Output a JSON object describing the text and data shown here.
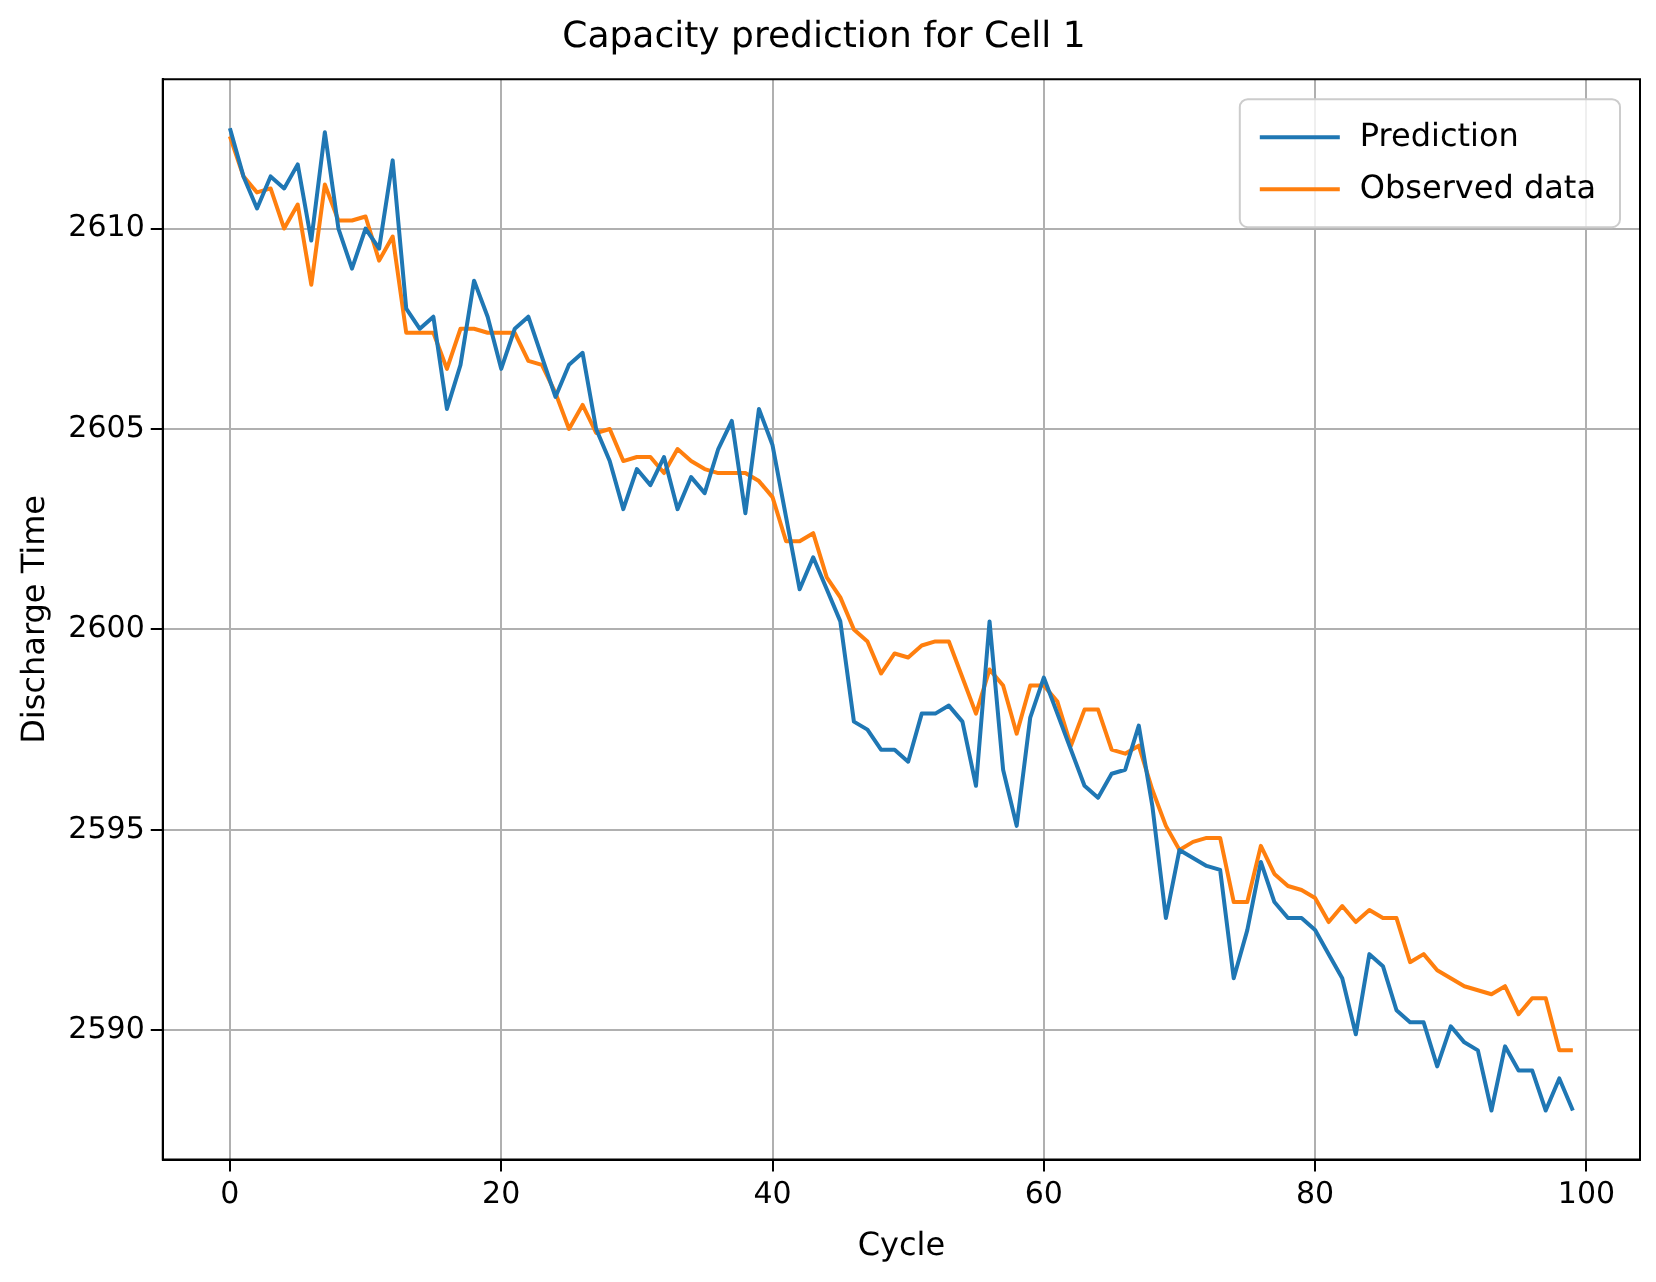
{
  "chart_data": {
    "type": "line",
    "title": "Capacity prediction for Cell 1",
    "xlabel": "Cycle",
    "ylabel": "Discharge Time",
    "x": [
      0,
      1,
      2,
      3,
      4,
      5,
      6,
      7,
      8,
      9,
      10,
      11,
      12,
      13,
      14,
      15,
      16,
      17,
      18,
      19,
      20,
      21,
      22,
      23,
      24,
      25,
      26,
      27,
      28,
      29,
      30,
      31,
      32,
      33,
      34,
      35,
      36,
      37,
      38,
      39,
      40,
      41,
      42,
      43,
      44,
      45,
      46,
      47,
      48,
      49,
      50,
      51,
      52,
      53,
      54,
      55,
      56,
      57,
      58,
      59,
      60,
      61,
      62,
      63,
      64,
      65,
      66,
      67,
      68,
      69,
      70,
      71,
      72,
      73,
      74,
      75,
      76,
      77,
      78,
      79,
      80,
      81,
      82,
      83,
      84,
      85,
      86,
      87,
      88,
      89,
      90,
      91,
      92,
      93,
      94,
      95,
      96,
      97,
      98,
      99
    ],
    "series": [
      {
        "name": "Prediction",
        "color": "#1f77b4",
        "values": [
          2612.5,
          2611.3,
          2610.5,
          2611.3,
          2611.0,
          2611.6,
          2609.7,
          2612.4,
          2610.0,
          2609.0,
          2610.0,
          2609.5,
          2611.7,
          2608.0,
          2607.5,
          2607.8,
          2605.5,
          2606.6,
          2608.7,
          2607.8,
          2606.5,
          2607.5,
          2607.8,
          2606.8,
          2605.8,
          2606.6,
          2606.9,
          2605.0,
          2604.2,
          2603.0,
          2604.0,
          2603.6,
          2604.3,
          2603.0,
          2603.8,
          2603.4,
          2604.5,
          2605.2,
          2602.9,
          2605.5,
          2604.6,
          2602.8,
          2601.0,
          2601.8,
          2601.0,
          2600.2,
          2597.7,
          2597.5,
          2597.0,
          2597.0,
          2596.7,
          2597.9,
          2597.9,
          2598.1,
          2597.7,
          2596.1,
          2600.2,
          2596.5,
          2595.1,
          2597.8,
          2598.8,
          2597.9,
          2597.0,
          2596.1,
          2595.8,
          2596.4,
          2596.5,
          2597.6,
          2595.6,
          2592.8,
          2594.5,
          2594.3,
          2594.1,
          2594.0,
          2591.3,
          2592.5,
          2594.2,
          2593.2,
          2592.8,
          2592.8,
          2592.5,
          2591.9,
          2591.3,
          2589.9,
          2591.9,
          2591.6,
          2590.5,
          2590.2,
          2590.2,
          2589.1,
          2590.1,
          2589.7,
          2589.5,
          2588.0,
          2589.6,
          2589.0,
          2589.0,
          2588.0,
          2588.8,
          2588.0
        ]
      },
      {
        "name": "Observed data",
        "color": "#ff7f0e",
        "values": [
          2612.3,
          2611.3,
          2610.9,
          2611.0,
          2610.0,
          2610.6,
          2608.6,
          2611.1,
          2610.2,
          2610.2,
          2610.3,
          2609.2,
          2609.8,
          2607.4,
          2607.4,
          2607.4,
          2606.5,
          2607.5,
          2607.5,
          2607.4,
          2607.4,
          2607.4,
          2606.7,
          2606.6,
          2605.9,
          2605.0,
          2605.6,
          2604.9,
          2605.0,
          2604.2,
          2604.3,
          2604.3,
          2603.9,
          2604.5,
          2604.2,
          2604.0,
          2603.9,
          2603.9,
          2603.9,
          2603.7,
          2603.3,
          2602.2,
          2602.2,
          2602.4,
          2601.3,
          2600.8,
          2600.0,
          2599.7,
          2598.9,
          2599.4,
          2599.3,
          2599.6,
          2599.7,
          2599.7,
          2598.8,
          2597.9,
          2599.0,
          2598.6,
          2597.4,
          2598.6,
          2598.6,
          2598.2,
          2597.1,
          2598.0,
          2598.0,
          2597.0,
          2596.9,
          2597.1,
          2596.0,
          2595.1,
          2594.5,
          2594.7,
          2594.8,
          2594.8,
          2593.2,
          2593.2,
          2594.6,
          2593.9,
          2593.6,
          2593.5,
          2593.3,
          2592.7,
          2593.1,
          2592.7,
          2593.0,
          2592.8,
          2592.8,
          2591.7,
          2591.9,
          2591.5,
          2591.3,
          2591.1,
          2591.0,
          2590.9,
          2591.1,
          2590.4,
          2590.8,
          2590.8,
          2589.5,
          2589.5
        ]
      }
    ],
    "xlim": [
      -4.95,
      103.95
    ],
    "ylim": [
      2586.775,
      2613.725
    ],
    "xticks": [
      0,
      20,
      40,
      60,
      80,
      100
    ],
    "yticks": [
      2590,
      2595,
      2600,
      2605,
      2610
    ],
    "grid": true,
    "legend": "top right",
    "marker": "none",
    "line_style": "solid"
  }
}
